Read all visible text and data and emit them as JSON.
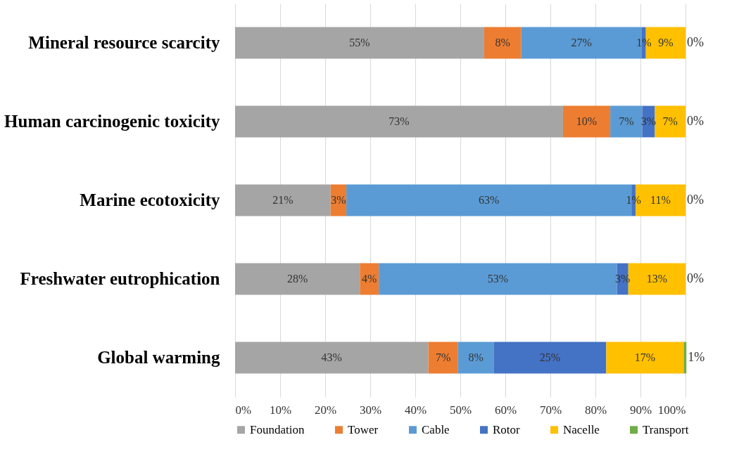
{
  "chart_data": {
    "type": "bar",
    "orientation": "horizontal",
    "stacked": true,
    "categories": [
      "Mineral resource scarcity",
      "Human carcinogenic toxicity",
      "Marine ecotoxicity",
      "Freshwater eutrophication",
      "Global warming"
    ],
    "series": [
      {
        "name": "Foundation",
        "color": "#a5a5a5",
        "values": [
          55.3,
          72.8,
          21.2,
          27.7,
          42.9
        ],
        "value_labels": [
          "55%",
          "73%",
          "21%",
          "28%",
          "43%"
        ]
      },
      {
        "name": "Tower",
        "color": "#ed7d31",
        "values": [
          8.2,
          10.5,
          3.5,
          4.2,
          6.6
        ],
        "value_labels": [
          "8%",
          "10%",
          "3%",
          "4%",
          "7%"
        ]
      },
      {
        "name": "Cable",
        "color": "#5b9bd5",
        "values": [
          26.8,
          7.1,
          63.3,
          52.9,
          7.9
        ],
        "value_labels": [
          "27%",
          "7%",
          "63%",
          "53%",
          "8%"
        ]
      },
      {
        "name": "Rotor",
        "color": "#4472c4",
        "values": [
          0.9,
          2.8,
          0.9,
          2.5,
          25.0
        ],
        "value_labels": [
          "1%",
          "3%",
          "1%",
          "3%",
          "25%"
        ]
      },
      {
        "name": "Nacelle",
        "color": "#ffc000",
        "values": [
          8.8,
          6.8,
          11.1,
          12.7,
          17.2
        ],
        "value_labels": [
          "9%",
          "7%",
          "11%",
          "13%",
          "17%"
        ]
      },
      {
        "name": "Transport",
        "color": "#70ad47",
        "values": [
          0,
          0,
          0,
          0,
          0.6
        ],
        "value_labels": [
          "0%",
          "0%",
          "0%",
          "0%",
          "1%"
        ]
      }
    ],
    "xlim": [
      0,
      100
    ],
    "xticks": [
      {
        "value": 0,
        "label": "0%"
      },
      {
        "value": 10,
        "label": "10%"
      },
      {
        "value": 20,
        "label": "20%"
      },
      {
        "value": 30,
        "label": "30%"
      },
      {
        "value": 40,
        "label": "40%"
      },
      {
        "value": 50,
        "label": "50%"
      },
      {
        "value": 60,
        "label": "60%"
      },
      {
        "value": 70,
        "label": "70%"
      },
      {
        "value": 80,
        "label": "80%"
      },
      {
        "value": 90,
        "label": "90%"
      },
      {
        "value": 100,
        "label": "100%"
      }
    ],
    "grid": "x",
    "legend": "bottom"
  }
}
